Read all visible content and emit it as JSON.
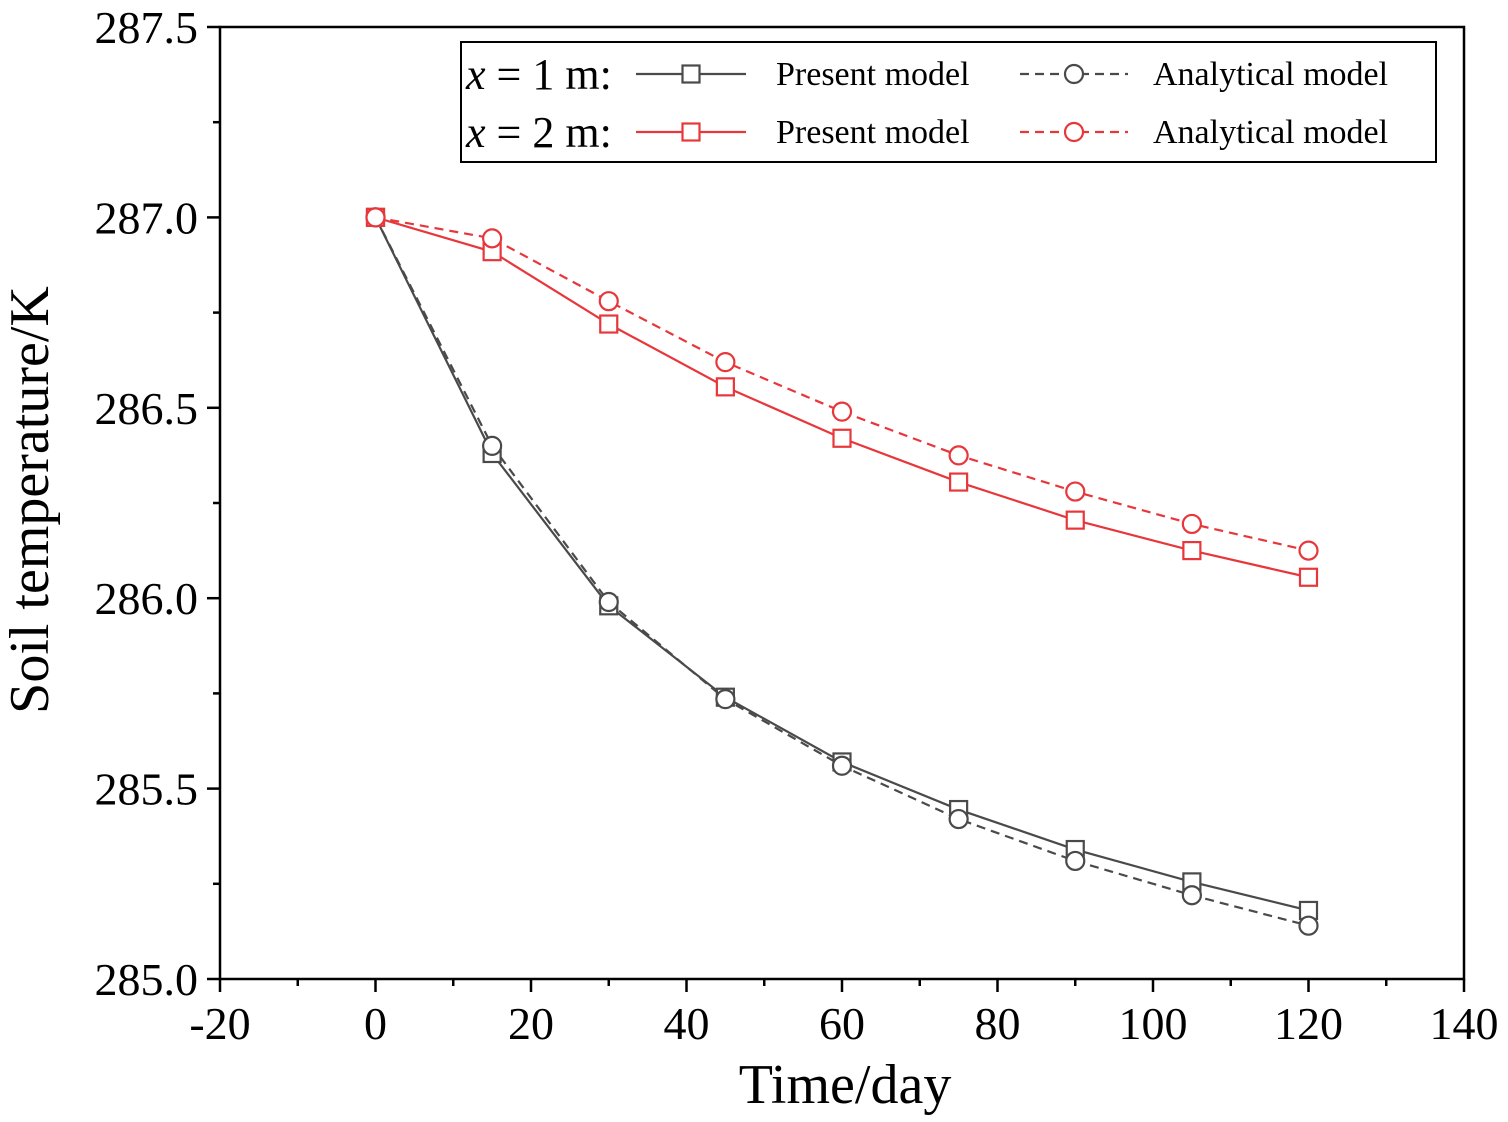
{
  "chart_data": {
    "type": "line",
    "title": "",
    "xlabel": "Time/day",
    "ylabel": "Soil temperature/K",
    "xlim": [
      -20,
      140
    ],
    "ylim": [
      285.0,
      287.5
    ],
    "xticks": [
      -20,
      0,
      20,
      40,
      60,
      80,
      100,
      120,
      140
    ],
    "xtick_labels": [
      "-20",
      "0",
      "20",
      "40",
      "60",
      "80",
      "100",
      "120",
      "140"
    ],
    "yticks": [
      285.0,
      285.5,
      286.0,
      286.5,
      287.0,
      287.5
    ],
    "ytick_labels": [
      "285.0",
      "285.5",
      "286.0",
      "286.5",
      "287.0",
      "287.5"
    ],
    "grid": false,
    "legend_position": "top-right",
    "legend_groups": [
      {
        "italic_var": "x",
        "label": " = 1 m:"
      },
      {
        "italic_var": "x",
        "label": " = 2 m:"
      }
    ],
    "x": [
      0,
      15,
      30,
      45,
      60,
      75,
      90,
      105,
      120
    ],
    "series": [
      {
        "name": "Present model",
        "group": 0,
        "color": "#4a4a4a",
        "line": "solid",
        "marker": "square",
        "values": [
          287.0,
          286.38,
          285.98,
          285.74,
          285.57,
          285.445,
          285.34,
          285.255,
          285.18
        ]
      },
      {
        "name": "Analytical model",
        "group": 0,
        "color": "#4a4a4a",
        "line": "dashed",
        "marker": "circle",
        "values": [
          287.0,
          286.4,
          285.99,
          285.735,
          285.56,
          285.42,
          285.31,
          285.22,
          285.14
        ]
      },
      {
        "name": "Present model",
        "group": 1,
        "color": "#e8373b",
        "line": "solid",
        "marker": "square",
        "values": [
          287.0,
          286.91,
          286.72,
          286.555,
          286.42,
          286.305,
          286.205,
          286.125,
          286.055
        ]
      },
      {
        "name": "Analytical model",
        "group": 1,
        "color": "#e8373b",
        "line": "dashed",
        "marker": "circle",
        "values": [
          287.0,
          286.945,
          286.78,
          286.62,
          286.49,
          286.375,
          286.28,
          286.195,
          286.125
        ]
      }
    ]
  }
}
